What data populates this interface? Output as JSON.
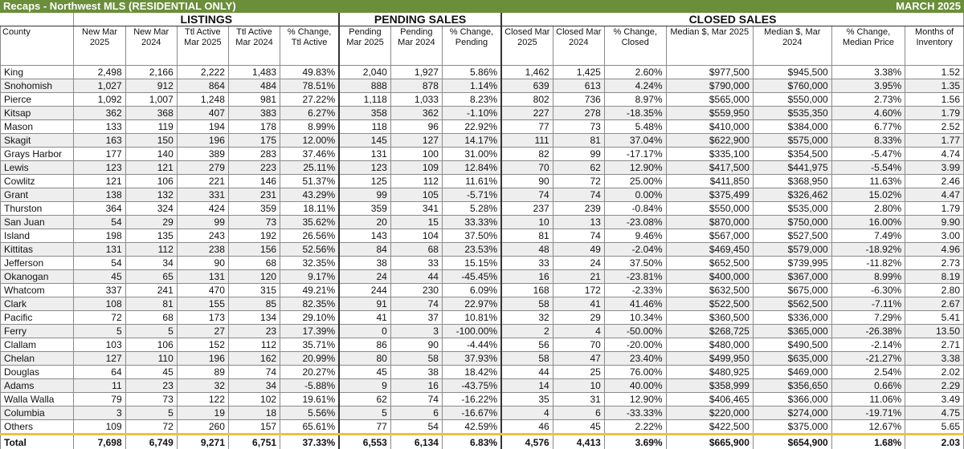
{
  "title": "Recaps - Northwest MLS (RESIDENTIAL ONLY)",
  "period": "MARCH 2025",
  "groups": [
    "LISTINGS",
    "PENDING SALES",
    "CLOSED SALES"
  ],
  "columns": [
    "County",
    "New Mar 2025",
    "New Mar 2024",
    "Ttl Active Mar 2025",
    "Ttl Active Mar 2024",
    "% Change, Ttl Active",
    "Pending Mar 2025",
    "Pending Mar 2024",
    "% Change, Pending",
    "Closed Mar 2025",
    "Closed Mar 2024",
    "% Change, Closed",
    "Median $, Mar 2025",
    "Median $, Mar 2024",
    "% Change, Median Price",
    "Months of Inventory"
  ],
  "rows": [
    [
      "King",
      "2,498",
      "2,166",
      "2,222",
      "1,483",
      "49.83%",
      "2,040",
      "1,927",
      "5.86%",
      "1,462",
      "1,425",
      "2.60%",
      "$977,500",
      "$945,500",
      "3.38%",
      "1.52"
    ],
    [
      "Snohomish",
      "1,027",
      "912",
      "864",
      "484",
      "78.51%",
      "888",
      "878",
      "1.14%",
      "639",
      "613",
      "4.24%",
      "$790,000",
      "$760,000",
      "3.95%",
      "1.35"
    ],
    [
      "Pierce",
      "1,092",
      "1,007",
      "1,248",
      "981",
      "27.22%",
      "1,118",
      "1,033",
      "8.23%",
      "802",
      "736",
      "8.97%",
      "$565,000",
      "$550,000",
      "2.73%",
      "1.56"
    ],
    [
      "Kitsap",
      "362",
      "368",
      "407",
      "383",
      "6.27%",
      "358",
      "362",
      "-1.10%",
      "227",
      "278",
      "-18.35%",
      "$559,950",
      "$535,350",
      "4.60%",
      "1.79"
    ],
    [
      "Mason",
      "133",
      "119",
      "194",
      "178",
      "8.99%",
      "118",
      "96",
      "22.92%",
      "77",
      "73",
      "5.48%",
      "$410,000",
      "$384,000",
      "6.77%",
      "2.52"
    ],
    [
      "Skagit",
      "163",
      "150",
      "196",
      "175",
      "12.00%",
      "145",
      "127",
      "14.17%",
      "111",
      "81",
      "37.04%",
      "$622,900",
      "$575,000",
      "8.33%",
      "1.77"
    ],
    [
      "Grays Harbor",
      "177",
      "140",
      "389",
      "283",
      "37.46%",
      "131",
      "100",
      "31.00%",
      "82",
      "99",
      "-17.17%",
      "$335,100",
      "$354,500",
      "-5.47%",
      "4.74"
    ],
    [
      "Lewis",
      "123",
      "121",
      "279",
      "223",
      "25.11%",
      "123",
      "109",
      "12.84%",
      "70",
      "62",
      "12.90%",
      "$417,500",
      "$441,975",
      "-5.54%",
      "3.99"
    ],
    [
      "Cowlitz",
      "121",
      "106",
      "221",
      "146",
      "51.37%",
      "125",
      "112",
      "11.61%",
      "90",
      "72",
      "25.00%",
      "$411,850",
      "$368,950",
      "11.63%",
      "2.46"
    ],
    [
      "Grant",
      "138",
      "132",
      "331",
      "231",
      "43.29%",
      "99",
      "105",
      "-5.71%",
      "74",
      "74",
      "0.00%",
      "$375,499",
      "$326,462",
      "15.02%",
      "4.47"
    ],
    [
      "Thurston",
      "364",
      "324",
      "424",
      "359",
      "18.11%",
      "359",
      "341",
      "5.28%",
      "237",
      "239",
      "-0.84%",
      "$550,000",
      "$535,000",
      "2.80%",
      "1.79"
    ],
    [
      "San Juan",
      "54",
      "29",
      "99",
      "73",
      "35.62%",
      "20",
      "15",
      "33.33%",
      "10",
      "13",
      "-23.08%",
      "$870,000",
      "$750,000",
      "16.00%",
      "9.90"
    ],
    [
      "Island",
      "198",
      "135",
      "243",
      "192",
      "26.56%",
      "143",
      "104",
      "37.50%",
      "81",
      "74",
      "9.46%",
      "$567,000",
      "$527,500",
      "7.49%",
      "3.00"
    ],
    [
      "Kittitas",
      "131",
      "112",
      "238",
      "156",
      "52.56%",
      "84",
      "68",
      "23.53%",
      "48",
      "49",
      "-2.04%",
      "$469,450",
      "$579,000",
      "-18.92%",
      "4.96"
    ],
    [
      "Jefferson",
      "54",
      "34",
      "90",
      "68",
      "32.35%",
      "38",
      "33",
      "15.15%",
      "33",
      "24",
      "37.50%",
      "$652,500",
      "$739,995",
      "-11.82%",
      "2.73"
    ],
    [
      "Okanogan",
      "45",
      "65",
      "131",
      "120",
      "9.17%",
      "24",
      "44",
      "-45.45%",
      "16",
      "21",
      "-23.81%",
      "$400,000",
      "$367,000",
      "8.99%",
      "8.19"
    ],
    [
      "Whatcom",
      "337",
      "241",
      "470",
      "315",
      "49.21%",
      "244",
      "230",
      "6.09%",
      "168",
      "172",
      "-2.33%",
      "$632,500",
      "$675,000",
      "-6.30%",
      "2.80"
    ],
    [
      "Clark",
      "108",
      "81",
      "155",
      "85",
      "82.35%",
      "91",
      "74",
      "22.97%",
      "58",
      "41",
      "41.46%",
      "$522,500",
      "$562,500",
      "-7.11%",
      "2.67"
    ],
    [
      "Pacific",
      "72",
      "68",
      "173",
      "134",
      "29.10%",
      "41",
      "37",
      "10.81%",
      "32",
      "29",
      "10.34%",
      "$360,500",
      "$336,000",
      "7.29%",
      "5.41"
    ],
    [
      "Ferry",
      "5",
      "5",
      "27",
      "23",
      "17.39%",
      "0",
      "3",
      "-100.00%",
      "2",
      "4",
      "-50.00%",
      "$268,725",
      "$365,000",
      "-26.38%",
      "13.50"
    ],
    [
      "Clallam",
      "103",
      "106",
      "152",
      "112",
      "35.71%",
      "86",
      "90",
      "-4.44%",
      "56",
      "70",
      "-20.00%",
      "$480,000",
      "$490,500",
      "-2.14%",
      "2.71"
    ],
    [
      "Chelan",
      "127",
      "110",
      "196",
      "162",
      "20.99%",
      "80",
      "58",
      "37.93%",
      "58",
      "47",
      "23.40%",
      "$499,950",
      "$635,000",
      "-21.27%",
      "3.38"
    ],
    [
      "Douglas",
      "64",
      "45",
      "89",
      "74",
      "20.27%",
      "45",
      "38",
      "18.42%",
      "44",
      "25",
      "76.00%",
      "$480,925",
      "$469,000",
      "2.54%",
      "2.02"
    ],
    [
      "Adams",
      "11",
      "23",
      "32",
      "34",
      "-5.88%",
      "9",
      "16",
      "-43.75%",
      "14",
      "10",
      "40.00%",
      "$358,999",
      "$356,650",
      "0.66%",
      "2.29"
    ],
    [
      "Walla Walla",
      "79",
      "73",
      "122",
      "102",
      "19.61%",
      "62",
      "74",
      "-16.22%",
      "35",
      "31",
      "12.90%",
      "$406,465",
      "$366,000",
      "11.06%",
      "3.49"
    ],
    [
      "Columbia",
      "3",
      "5",
      "19",
      "18",
      "5.56%",
      "5",
      "6",
      "-16.67%",
      "4",
      "6",
      "-33.33%",
      "$220,000",
      "$274,000",
      "-19.71%",
      "4.75"
    ],
    [
      "Others",
      "109",
      "72",
      "260",
      "157",
      "65.61%",
      "77",
      "54",
      "42.59%",
      "46",
      "45",
      "2.22%",
      "$422,500",
      "$375,000",
      "12.67%",
      "5.65"
    ]
  ],
  "total": [
    "Total",
    "7,698",
    "6,749",
    "9,271",
    "6,751",
    "37.33%",
    "6,553",
    "6,134",
    "6.83%",
    "4,576",
    "4,413",
    "3.69%",
    "$665,900",
    "$654,900",
    "1.68%",
    "2.03"
  ]
}
